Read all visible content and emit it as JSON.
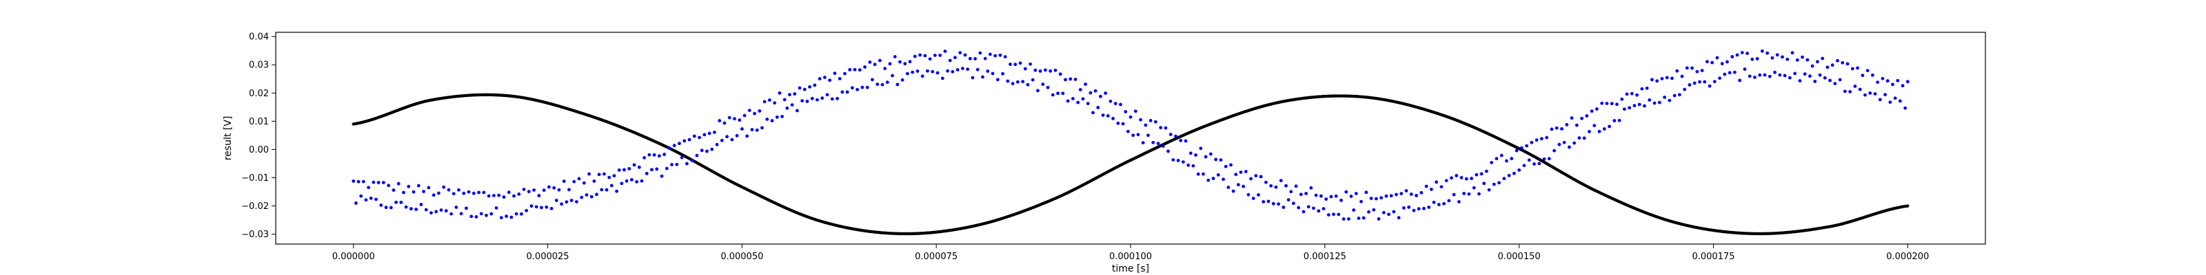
{
  "chart_data": {
    "type": "scatter",
    "xlabel": "time [s]",
    "ylabel": "result [V]",
    "xlim": [
      -1e-05,
      0.00021
    ],
    "ylim": [
      -0.0335,
      0.0415
    ],
    "x_ticks": [
      0.0,
      2.5e-05,
      5e-05,
      7.5e-05,
      0.0001,
      0.000125,
      0.00015,
      0.000175,
      0.0002
    ],
    "x_tick_labels": [
      "0.000000",
      "0.000025",
      "0.000050",
      "0.000075",
      "0.000100",
      "0.000125",
      "0.000150",
      "0.000175",
      "0.000200"
    ],
    "y_ticks": [
      -0.03,
      -0.02,
      -0.01,
      0.0,
      0.01,
      0.02,
      0.03,
      0.04
    ],
    "y_tick_labels": [
      "−0.03",
      "−0.02",
      "−0.01",
      "0.00",
      "0.01",
      "0.02",
      "0.03",
      "0.04"
    ],
    "grid": false,
    "series": [
      {
        "color": "#000000",
        "marker": "dense-dots",
        "x": [
          0.0,
          1e-05,
          2e-05,
          3e-05,
          4e-05,
          5e-05,
          6e-05,
          7e-05,
          8e-05,
          9e-05,
          0.0001,
          0.00011,
          0.00012,
          0.00013,
          0.00014,
          0.00015,
          0.00016,
          0.00017,
          0.00018,
          0.00019,
          0.0002
        ],
        "values": [
          0.009,
          0.0175,
          0.019,
          0.0123,
          0.0013,
          -0.0133,
          -0.0253,
          -0.0298,
          -0.027,
          -0.0177,
          -0.0038,
          0.0087,
          0.0172,
          0.0186,
          0.0123,
          0.0003,
          -0.0148,
          -0.0258,
          -0.0298,
          -0.0273,
          -0.02
        ]
      },
      {
        "color": "#0000ff",
        "marker": "dots",
        "x": [
          0.0,
          1e-05,
          2e-05,
          3e-05,
          4e-05,
          5e-05,
          6e-05,
          7e-05,
          8e-05,
          9e-05,
          0.0001,
          0.00011,
          0.00012,
          0.00013,
          0.00014,
          0.00015,
          0.00016,
          0.00017,
          0.00018,
          0.00019,
          0.0002
        ],
        "values": [
          -0.015,
          -0.018,
          -0.019,
          -0.014,
          -0.004,
          0.009,
          0.021,
          0.028,
          0.03,
          0.024,
          0.01,
          -0.006,
          -0.016,
          -0.02,
          -0.016,
          -0.004,
          0.011,
          0.023,
          0.03,
          0.027,
          0.019
        ]
      }
    ]
  }
}
